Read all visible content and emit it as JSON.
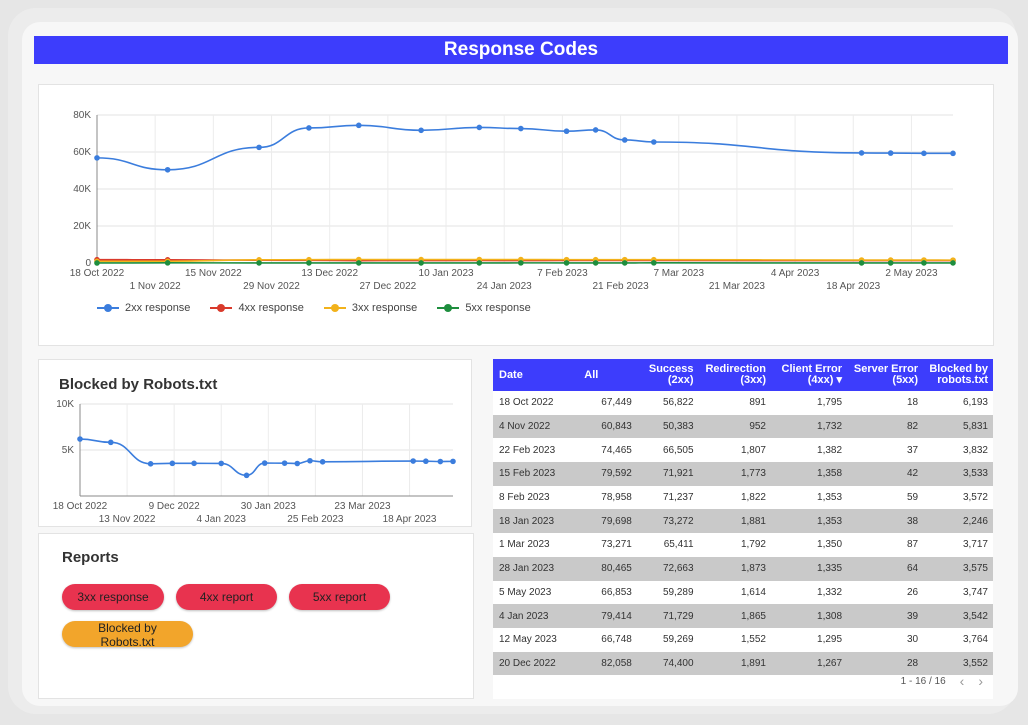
{
  "page": {
    "title": "Response Codes"
  },
  "main_chart": {
    "legend": [
      {
        "label": "2xx response",
        "color": "#3b7ddd"
      },
      {
        "label": "4xx response",
        "color": "#d93a2b"
      },
      {
        "label": "3xx response",
        "color": "#f2b21b"
      },
      {
        "label": "5xx response",
        "color": "#1e8e3e"
      }
    ]
  },
  "robots": {
    "title": "Blocked by Robots.txt"
  },
  "reports": {
    "title": "Reports",
    "buttons": [
      {
        "label": "3xx response",
        "color": "#e8334f"
      },
      {
        "label": "4xx report",
        "color": "#e8334f"
      },
      {
        "label": "5xx report",
        "color": "#e8334f"
      },
      {
        "label": "Blocked by Robots.txt",
        "color": "#f2a52b"
      }
    ]
  },
  "table": {
    "headers": [
      "Date",
      "All",
      "Success (2xx)",
      "Redirection (3xx)",
      "Client Error (4xx)",
      "Server Error (5xx)",
      "Blocked by robots.txt"
    ],
    "sort_indicator": "▾",
    "rows": [
      [
        "18 Oct 2022",
        "67,449",
        "56,822",
        "891",
        "1,795",
        "18",
        "6,193"
      ],
      [
        "4 Nov 2022",
        "60,843",
        "50,383",
        "952",
        "1,732",
        "82",
        "5,831"
      ],
      [
        "22 Feb 2023",
        "74,465",
        "66,505",
        "1,807",
        "1,382",
        "37",
        "3,832"
      ],
      [
        "15 Feb 2023",
        "79,592",
        "71,921",
        "1,773",
        "1,358",
        "42",
        "3,533"
      ],
      [
        "8 Feb 2023",
        "78,958",
        "71,237",
        "1,822",
        "1,353",
        "59",
        "3,572"
      ],
      [
        "18 Jan 2023",
        "79,698",
        "73,272",
        "1,881",
        "1,353",
        "38",
        "2,246"
      ],
      [
        "1 Mar 2023",
        "73,271",
        "65,411",
        "1,792",
        "1,350",
        "87",
        "3,717"
      ],
      [
        "28 Jan 2023",
        "80,465",
        "72,663",
        "1,873",
        "1,335",
        "64",
        "3,575"
      ],
      [
        "5 May 2023",
        "66,853",
        "59,289",
        "1,614",
        "1,332",
        "26",
        "3,747"
      ],
      [
        "4 Jan 2023",
        "79,414",
        "71,729",
        "1,865",
        "1,308",
        "39",
        "3,542"
      ],
      [
        "12 May 2023",
        "66,748",
        "59,269",
        "1,552",
        "1,295",
        "30",
        "3,764"
      ],
      [
        "20 Dec 2022",
        "82,058",
        "74,400",
        "1,891",
        "1,267",
        "28",
        "3,552"
      ]
    ],
    "pagination": "1 - 16 / 16"
  },
  "chart_data": [
    {
      "type": "line",
      "ylim": [
        0,
        80000
      ],
      "yticks": [
        "0",
        "20K",
        "40K",
        "60K",
        "80K"
      ],
      "ytick_values": [
        0,
        20000,
        40000,
        60000,
        80000
      ],
      "xticks_upper": [
        "18 Oct 2022",
        "15 Nov 2022",
        "13 Dec 2022",
        "10 Jan 2023",
        "7 Feb 2023",
        "7 Mar 2023",
        "4 Apr 2023",
        "2 May 2023"
      ],
      "xticks_lower": [
        "1 Nov 2022",
        "29 Nov 2022",
        "27 Dec 2022",
        "24 Jan 2023",
        "21 Feb 2023",
        "21 Mar 2023",
        "18 Apr 2023"
      ],
      "x": [
        "2022-10-18",
        "2022-11-04",
        "2022-11-26",
        "2022-12-08",
        "2022-12-20",
        "2023-01-04",
        "2023-01-18",
        "2023-01-28",
        "2023-02-08",
        "2023-02-15",
        "2023-02-22",
        "2023-03-01",
        "2023-04-20",
        "2023-04-27",
        "2023-05-05",
        "2023-05-12"
      ],
      "series": [
        {
          "name": "2xx response",
          "color": "#3b7ddd",
          "values": [
            56822,
            50383,
            62500,
            73000,
            74400,
            71729,
            73272,
            72663,
            71237,
            71921,
            66505,
            65411,
            59500,
            59400,
            59289,
            59269
          ]
        },
        {
          "name": "4xx response",
          "color": "#d93a2b",
          "values": [
            1795,
            1732,
            1500,
            1450,
            1267,
            1308,
            1353,
            1335,
            1353,
            1358,
            1382,
            1350,
            1330,
            1320,
            1332,
            1295
          ]
        },
        {
          "name": "3xx response",
          "color": "#f2b21b",
          "values": [
            891,
            952,
            1700,
            1800,
            1891,
            1865,
            1881,
            1873,
            1822,
            1773,
            1807,
            1792,
            1600,
            1580,
            1614,
            1552
          ]
        },
        {
          "name": "5xx response",
          "color": "#1e8e3e",
          "values": [
            18,
            82,
            40,
            35,
            28,
            39,
            38,
            64,
            59,
            42,
            37,
            87,
            30,
            28,
            26,
            30
          ]
        }
      ]
    },
    {
      "type": "line",
      "title": "Blocked by Robots.txt",
      "ylim": [
        0,
        10000
      ],
      "yticks": [
        "5K",
        "10K"
      ],
      "ytick_values": [
        5000,
        10000
      ],
      "xticks_upper": [
        "18 Oct 2022",
        "9 Dec 2022",
        "30 Jan 2023",
        "23 Mar 2023"
      ],
      "xticks_lower": [
        "13 Nov 2022",
        "4 Jan 2023",
        "25 Feb 2023",
        "18 Apr 2023"
      ],
      "x": [
        "2022-10-18",
        "2022-11-04",
        "2022-11-26",
        "2022-12-08",
        "2022-12-20",
        "2023-01-04",
        "2023-01-18",
        "2023-01-28",
        "2023-02-08",
        "2023-02-15",
        "2023-02-22",
        "2023-03-01",
        "2023-04-20",
        "2023-04-27",
        "2023-05-05",
        "2023-05-12"
      ],
      "series": [
        {
          "name": "Blocked by Robots.txt",
          "color": "#3b7ddd",
          "values": [
            6193,
            5831,
            3500,
            3550,
            3552,
            3542,
            2246,
            3575,
            3572,
            3533,
            3832,
            3717,
            3800,
            3780,
            3747,
            3764
          ]
        }
      ]
    }
  ]
}
